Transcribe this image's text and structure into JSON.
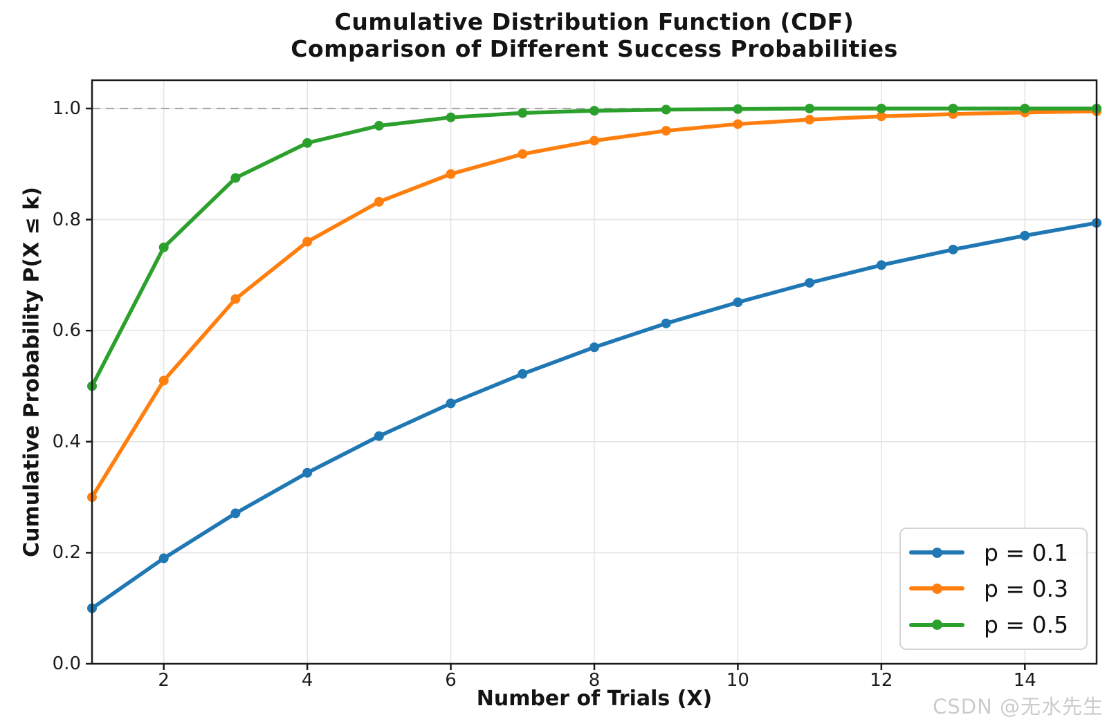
{
  "chart_data": {
    "type": "line",
    "title_line1": "Cumulative Distribution Function (CDF)",
    "title_line2": "Comparison of Different Success Probabilities",
    "xlabel": "Number of Trials (X)",
    "ylabel": "Cumulative Probability P(X ≤ k)",
    "x": [
      1,
      2,
      3,
      4,
      5,
      6,
      7,
      8,
      9,
      10,
      11,
      12,
      13,
      14,
      15
    ],
    "series": [
      {
        "name": "p = 0.1",
        "color": "#1f77b4",
        "values": [
          0.1,
          0.19,
          0.271,
          0.344,
          0.41,
          0.469,
          0.522,
          0.57,
          0.613,
          0.651,
          0.686,
          0.718,
          0.746,
          0.771,
          0.794
        ]
      },
      {
        "name": "p = 0.3",
        "color": "#ff7f0e",
        "values": [
          0.3,
          0.51,
          0.657,
          0.76,
          0.832,
          0.882,
          0.918,
          0.942,
          0.96,
          0.972,
          0.98,
          0.986,
          0.99,
          0.993,
          0.995
        ]
      },
      {
        "name": "p = 0.5",
        "color": "#2ca02c",
        "values": [
          0.5,
          0.75,
          0.875,
          0.938,
          0.969,
          0.984,
          0.992,
          0.996,
          0.998,
          0.999,
          1.0,
          1.0,
          1.0,
          1.0,
          1.0
        ]
      }
    ],
    "xticks": [
      2,
      4,
      6,
      8,
      10,
      12,
      14
    ],
    "yticks": [
      "0.0",
      "0.2",
      "0.4",
      "0.6",
      "0.8",
      "1.0"
    ],
    "xlim": [
      1,
      15
    ],
    "ylim": [
      0,
      1.051
    ],
    "grid": true,
    "legend_position": "lower right",
    "reference_line": {
      "y": 1.0,
      "style": "dashed"
    },
    "colors": {
      "grid": "#e4e4e4",
      "axis": "#1a1a1a",
      "reference": "#a8a8a8",
      "tick_labels": "#1c1c1c"
    }
  },
  "watermark": {
    "text": "CSDN @无水先生"
  }
}
